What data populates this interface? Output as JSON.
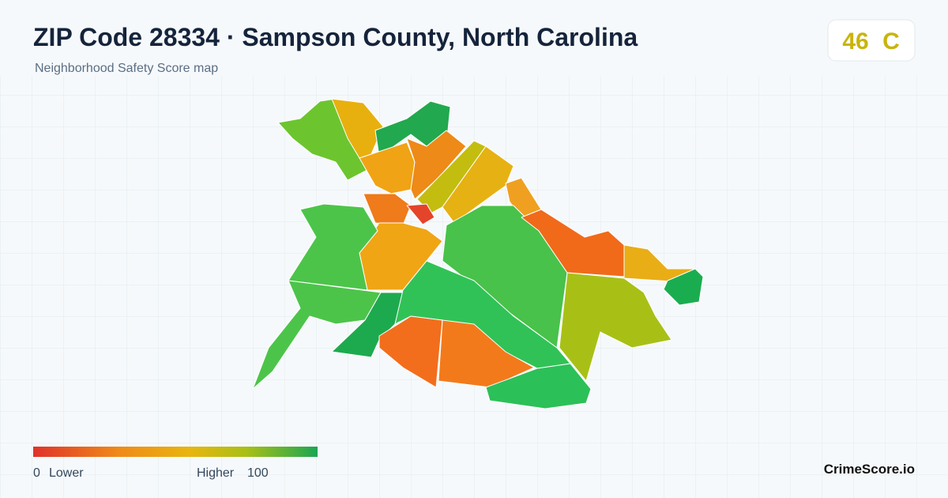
{
  "header": {
    "title": "ZIP Code 28334 · Sampson County, North Carolina",
    "subtitle": "Neighborhood Safety Score map"
  },
  "score": {
    "value": 46,
    "grade": "C"
  },
  "legend": {
    "min": 0,
    "min_label": "Lower",
    "max_label": "Higher",
    "max": 100
  },
  "brand": "CrimeScore.io"
}
